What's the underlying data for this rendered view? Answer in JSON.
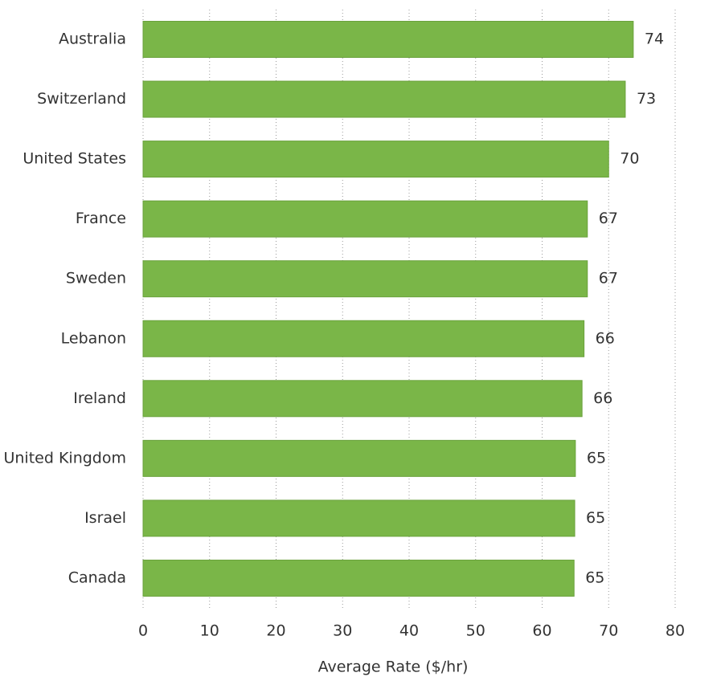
{
  "chart_data": {
    "type": "hbar",
    "x_label": "Average Rate ($/hr)",
    "categories": [
      "Australia",
      "Switzerland",
      "United States",
      "France",
      "Sweden",
      "Lebanon",
      "Ireland",
      "United Kingdom",
      "Israel",
      "Canada"
    ],
    "values": [
      73.7,
      72.5,
      70.0,
      66.8,
      66.8,
      66.3,
      66.0,
      65.0,
      64.9,
      64.8
    ],
    "value_labels": [
      "74",
      "73",
      "70",
      "67",
      "67",
      "66",
      "66",
      "65",
      "65",
      "65"
    ],
    "color": "#7ab648",
    "xlim": [
      0,
      80
    ],
    "xticks": [
      0,
      10,
      20,
      30,
      40,
      50,
      60,
      70,
      80
    ],
    "grid": true
  }
}
